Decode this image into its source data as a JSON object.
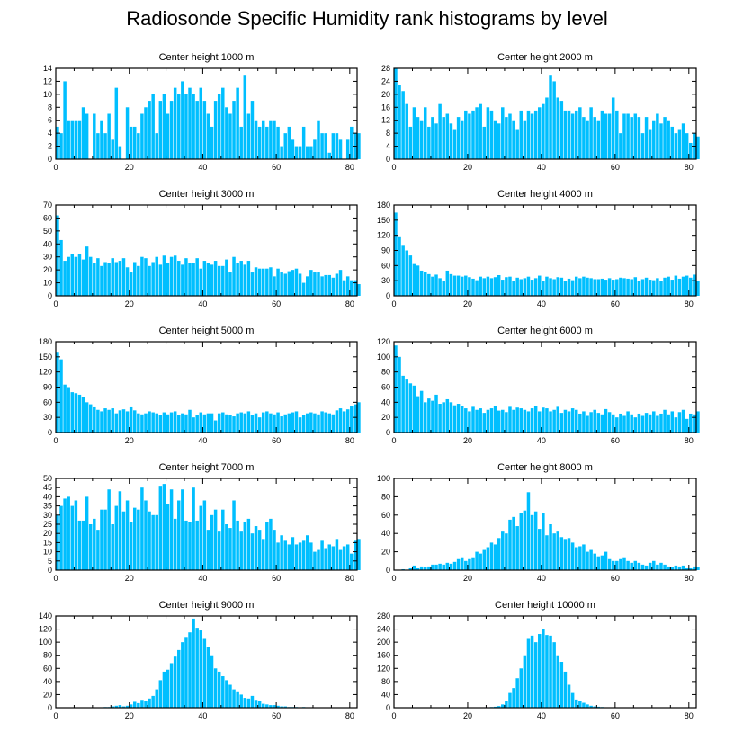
{
  "title": "Radiosonde Specific Humidity rank histograms by level",
  "colors": {
    "bar": "#00bfff",
    "axis": "#000000",
    "background": "#ffffff"
  },
  "chart_data": [
    {
      "type": "bar",
      "title": "Center height 1000 m",
      "xlabel": "",
      "ylabel": "",
      "xlim": [
        0,
        82
      ],
      "ylim": [
        0,
        14
      ],
      "yticks": [
        0,
        2,
        4,
        6,
        8,
        10,
        12,
        14
      ],
      "xticks": [
        0,
        20,
        40,
        60,
        80
      ],
      "x_start": 0,
      "values": [
        5,
        4,
        12,
        6,
        6,
        6,
        6,
        8,
        7,
        0,
        7,
        4,
        6,
        4,
        7,
        3,
        11,
        2,
        0,
        8,
        5,
        5,
        4,
        7,
        8,
        9,
        10,
        4,
        9,
        10,
        7,
        9,
        11,
        10,
        12,
        10,
        11,
        10,
        9,
        11,
        9,
        7,
        5,
        9,
        10,
        11,
        8,
        7,
        9,
        11,
        5,
        13,
        7,
        9,
        6,
        5,
        6,
        5,
        6,
        6,
        5,
        2,
        4,
        5,
        3,
        2,
        2,
        5,
        2,
        2,
        3,
        6,
        4,
        4,
        1,
        4,
        4,
        3,
        0,
        3,
        5,
        4,
        4
      ]
    },
    {
      "type": "bar",
      "title": "Center height 2000 m",
      "xlabel": "",
      "ylabel": "",
      "xlim": [
        0,
        82
      ],
      "ylim": [
        0,
        28
      ],
      "yticks": [
        0,
        4,
        8,
        12,
        16,
        20,
        24,
        28
      ],
      "xticks": [
        0,
        20,
        40,
        60,
        80
      ],
      "x_start": 0,
      "values": [
        28,
        23,
        21,
        17,
        10,
        16,
        13,
        12,
        16,
        10,
        13,
        11,
        17,
        13,
        14,
        11,
        9,
        13,
        12,
        15,
        14,
        15,
        16,
        17,
        10,
        16,
        15,
        12,
        11,
        16,
        13,
        14,
        12,
        9,
        15,
        12,
        15,
        14,
        15,
        16,
        17,
        19,
        26,
        24,
        19,
        18,
        15,
        15,
        14,
        15,
        16,
        13,
        12,
        16,
        13,
        12,
        15,
        14,
        14,
        19,
        15,
        8,
        14,
        14,
        13,
        14,
        13,
        8,
        13,
        9,
        12,
        14,
        11,
        13,
        12,
        10,
        8,
        9,
        11,
        8,
        5,
        8,
        7
      ]
    },
    {
      "type": "bar",
      "title": "Center height 3000 m",
      "xlabel": "",
      "ylabel": "",
      "xlim": [
        0,
        82
      ],
      "ylim": [
        0,
        70
      ],
      "yticks": [
        0,
        10,
        20,
        30,
        40,
        50,
        60,
        70
      ],
      "xticks": [
        0,
        20,
        40,
        60,
        80
      ],
      "x_start": 0,
      "values": [
        62,
        43,
        27,
        30,
        32,
        30,
        32,
        28,
        38,
        30,
        25,
        29,
        23,
        26,
        25,
        29,
        26,
        27,
        29,
        22,
        18,
        26,
        23,
        30,
        29,
        23,
        26,
        30,
        24,
        31,
        25,
        30,
        31,
        27,
        24,
        29,
        25,
        25,
        29,
        21,
        27,
        25,
        24,
        27,
        23,
        23,
        28,
        18,
        30,
        25,
        27,
        24,
        27,
        18,
        22,
        21,
        21,
        21,
        22,
        15,
        21,
        18,
        17,
        19,
        20,
        21,
        17,
        10,
        15,
        20,
        18,
        18,
        15,
        16,
        16,
        14,
        17,
        20,
        12,
        15,
        12,
        12,
        9
      ]
    },
    {
      "type": "bar",
      "title": "Center height 4000 m",
      "xlabel": "",
      "ylabel": "",
      "xlim": [
        0,
        82
      ],
      "ylim": [
        0,
        180
      ],
      "yticks": [
        0,
        30,
        60,
        90,
        120,
        150,
        180
      ],
      "xticks": [
        0,
        20,
        40,
        60,
        80
      ],
      "x_start": 0,
      "values": [
        165,
        118,
        101,
        90,
        80,
        63,
        60,
        50,
        48,
        43,
        38,
        42,
        35,
        30,
        50,
        43,
        40,
        40,
        38,
        40,
        37,
        34,
        31,
        38,
        35,
        38,
        35,
        37,
        41,
        32,
        37,
        38,
        30,
        36,
        33,
        35,
        38,
        32,
        35,
        40,
        30,
        38,
        35,
        33,
        37,
        36,
        30,
        34,
        31,
        38,
        35,
        38,
        36,
        35,
        33,
        33,
        34,
        32,
        35,
        32,
        33,
        36,
        35,
        34,
        33,
        37,
        30,
        33,
        36,
        32,
        31,
        35,
        30,
        36,
        38,
        32,
        40,
        34,
        38,
        40,
        36,
        42,
        30
      ]
    },
    {
      "type": "bar",
      "title": "Center height 5000 m",
      "xlabel": "",
      "ylabel": "",
      "xlim": [
        0,
        82
      ],
      "ylim": [
        0,
        180
      ],
      "yticks": [
        0,
        30,
        60,
        90,
        120,
        150,
        180
      ],
      "xticks": [
        0,
        20,
        40,
        60,
        80
      ],
      "x_start": 0,
      "values": [
        160,
        145,
        95,
        90,
        80,
        78,
        75,
        70,
        60,
        56,
        50,
        45,
        42,
        48,
        45,
        48,
        38,
        44,
        46,
        42,
        50,
        44,
        38,
        36,
        38,
        42,
        40,
        38,
        35,
        40,
        36,
        40,
        42,
        35,
        38,
        36,
        45,
        30,
        34,
        40,
        36,
        38,
        38,
        24,
        38,
        40,
        36,
        35,
        32,
        38,
        40,
        38,
        42,
        35,
        38,
        30,
        40,
        42,
        38,
        36,
        40,
        32,
        36,
        38,
        40,
        42,
        30,
        35,
        38,
        40,
        38,
        36,
        42,
        40,
        38,
        36,
        44,
        48,
        42,
        46,
        52,
        56,
        60
      ]
    },
    {
      "type": "bar",
      "title": "Center height 6000 m",
      "xlabel": "",
      "ylabel": "",
      "xlim": [
        0,
        82
      ],
      "ylim": [
        0,
        120
      ],
      "yticks": [
        0,
        20,
        40,
        60,
        80,
        100,
        120
      ],
      "xticks": [
        0,
        20,
        40,
        60,
        80
      ],
      "x_start": 0,
      "values": [
        115,
        100,
        75,
        70,
        65,
        62,
        48,
        55,
        40,
        45,
        42,
        50,
        38,
        40,
        44,
        40,
        36,
        38,
        35,
        32,
        28,
        34,
        30,
        32,
        26,
        30,
        32,
        35,
        29,
        30,
        27,
        34,
        30,
        33,
        32,
        30,
        28,
        32,
        35,
        28,
        33,
        32,
        28,
        30,
        34,
        26,
        30,
        28,
        32,
        30,
        25,
        28,
        22,
        27,
        30,
        26,
        24,
        31,
        27,
        24,
        20,
        25,
        22,
        28,
        24,
        20,
        25,
        22,
        26,
        24,
        28,
        22,
        25,
        30,
        24,
        28,
        20,
        27,
        30,
        18,
        25,
        24,
        28
      ]
    },
    {
      "type": "bar",
      "title": "Center height 7000 m",
      "xlabel": "",
      "ylabel": "",
      "xlim": [
        0,
        82
      ],
      "ylim": [
        0,
        50
      ],
      "yticks": [
        0,
        5,
        10,
        15,
        20,
        25,
        30,
        35,
        40,
        45,
        50
      ],
      "xticks": [
        0,
        20,
        40,
        60,
        80
      ],
      "x_start": 0,
      "values": [
        30,
        35,
        39,
        40,
        35,
        38,
        27,
        27,
        40,
        25,
        28,
        22,
        33,
        33,
        44,
        25,
        35,
        43,
        32,
        38,
        26,
        34,
        33,
        45,
        38,
        32,
        30,
        30,
        46,
        47,
        36,
        44,
        28,
        38,
        44,
        27,
        26,
        45,
        27,
        35,
        38,
        22,
        30,
        33,
        21,
        33,
        25,
        23,
        38,
        27,
        21,
        26,
        28,
        20,
        24,
        22,
        17,
        26,
        28,
        22,
        15,
        19,
        16,
        14,
        18,
        14,
        15,
        16,
        19,
        15,
        10,
        11,
        16,
        12,
        14,
        13,
        17,
        11,
        13,
        14,
        9,
        16,
        17
      ]
    },
    {
      "type": "bar",
      "title": "Center height 8000 m",
      "xlabel": "",
      "ylabel": "",
      "xlim": [
        0,
        82
      ],
      "ylim": [
        0,
        100
      ],
      "yticks": [
        0,
        20,
        40,
        60,
        80,
        100
      ],
      "xticks": [
        0,
        20,
        40,
        60,
        80
      ],
      "x_start": 0,
      "values": [
        0,
        0,
        1,
        0,
        2,
        5,
        2,
        4,
        3,
        4,
        6,
        6,
        7,
        6,
        8,
        7,
        9,
        12,
        14,
        10,
        12,
        14,
        20,
        18,
        22,
        25,
        30,
        28,
        35,
        42,
        40,
        55,
        58,
        48,
        62,
        65,
        85,
        60,
        64,
        45,
        62,
        38,
        50,
        40,
        42,
        36,
        34,
        35,
        30,
        25,
        26,
        28,
        20,
        22,
        18,
        15,
        16,
        20,
        12,
        10,
        10,
        12,
        14,
        10,
        8,
        10,
        8,
        6,
        5,
        8,
        10,
        6,
        8,
        6,
        4,
        3,
        5,
        4,
        5,
        2,
        2,
        4,
        3
      ]
    },
    {
      "type": "bar",
      "title": "Center height 9000 m",
      "xlabel": "",
      "ylabel": "",
      "xlim": [
        0,
        82
      ],
      "ylim": [
        0,
        140
      ],
      "yticks": [
        0,
        20,
        40,
        60,
        80,
        100,
        120,
        140
      ],
      "xticks": [
        0,
        20,
        40,
        60,
        80
      ],
      "x_start": 0,
      "values": [
        0,
        0,
        0,
        0,
        0,
        0,
        0,
        0,
        0,
        0,
        0,
        0,
        0,
        1,
        1,
        2,
        3,
        4,
        2,
        3,
        5,
        9,
        7,
        12,
        10,
        14,
        18,
        28,
        42,
        55,
        58,
        68,
        78,
        88,
        100,
        108,
        115,
        136,
        122,
        118,
        105,
        92,
        80,
        60,
        55,
        48,
        42,
        35,
        28,
        25,
        20,
        15,
        14,
        18,
        12,
        10,
        6,
        5,
        4,
        4,
        3,
        2,
        2,
        1,
        1,
        1,
        0,
        1,
        0,
        0,
        0,
        0,
        0,
        0,
        0,
        0,
        0,
        0,
        0,
        0,
        0,
        0,
        0
      ]
    },
    {
      "type": "bar",
      "title": "Center height 10000 m",
      "xlabel": "",
      "ylabel": "",
      "xlim": [
        0,
        82
      ],
      "ylim": [
        0,
        280
      ],
      "yticks": [
        0,
        40,
        80,
        120,
        160,
        200,
        240,
        280
      ],
      "xticks": [
        0,
        20,
        40,
        60,
        80
      ],
      "x_start": 0,
      "values": [
        0,
        0,
        0,
        0,
        0,
        0,
        0,
        0,
        0,
        0,
        0,
        0,
        0,
        0,
        0,
        0,
        0,
        0,
        0,
        0,
        0,
        0,
        0,
        0,
        0,
        1,
        2,
        3,
        5,
        10,
        20,
        45,
        60,
        90,
        120,
        160,
        210,
        220,
        200,
        225,
        240,
        222,
        220,
        200,
        160,
        140,
        110,
        70,
        45,
        25,
        20,
        15,
        10,
        6,
        4,
        3,
        2,
        1,
        1,
        1,
        0,
        0,
        0,
        0,
        0,
        0,
        0,
        0,
        0,
        0,
        0,
        0,
        0,
        0,
        0,
        0,
        0,
        0,
        0,
        0,
        0,
        0,
        0
      ]
    }
  ]
}
